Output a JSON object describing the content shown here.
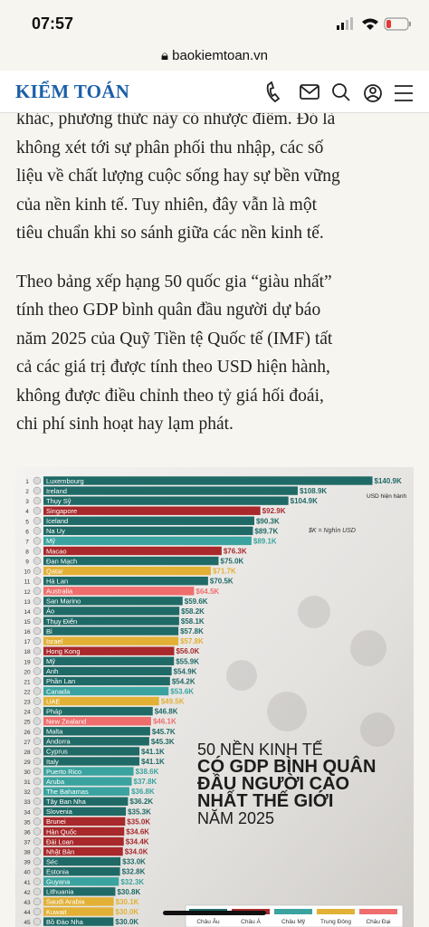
{
  "status": {
    "time": "07:57"
  },
  "browser": {
    "url": "baokiemtoan.vn"
  },
  "header": {
    "logo": "KIỂM TOÁN"
  },
  "article": {
    "paragraphs": [
      [
        "khác, phương thức này có nhược điểm. Đó là",
        "không xét tới sự phân phối thu nhập, các số",
        "liệu về chất lượng cuộc sống hay sự bền vững",
        "của nền kinh tế. Tuy nhiên, đây vẫn là một",
        "tiêu chuẩn khi so sánh giữa các nền kinh tế."
      ],
      [
        "Theo bảng xếp hạng 50 quốc gia “giàu nhất”",
        "tính theo GDP bình quân đầu người dự báo",
        "năm 2025 của Quỹ Tiền tệ Quốc tế (IMF) tất",
        "cả các giá trị được tính theo USD hiện hành,",
        "không được điều chỉnh theo tỷ giá hối đoái,",
        "chi phí sinh hoạt hay lạm phát."
      ]
    ]
  },
  "chart_data": {
    "type": "bar",
    "orientation": "horizontal",
    "title": [
      "50 NỀN KINH TẾ",
      "CÓ GDP BÌNH QUÂN",
      "ĐẦU NGƯỜI CAO",
      "NHẤT THẾ GIỚI",
      "NĂM 2025"
    ],
    "annotations": [
      "USD hiện hành",
      "$K = Nghìn USD"
    ],
    "ranks": [
      1,
      2,
      3,
      4,
      5,
      6,
      7,
      8,
      9,
      10,
      11,
      12,
      13,
      14,
      15,
      16,
      17,
      18,
      19,
      20,
      21,
      22,
      23,
      24,
      25,
      26,
      27,
      28,
      29,
      30,
      31,
      32,
      33,
      34,
      35,
      36,
      37,
      38,
      39,
      40,
      41,
      42,
      43,
      44,
      45
    ],
    "categories": [
      "Luxembourg",
      "Ireland",
      "Thụy Sỹ",
      "Singapore",
      "Iceland",
      "Na Uy",
      "Mỹ",
      "Macao",
      "Đan Mạch",
      "Qatar",
      "Hà Lan",
      "Australia",
      "San Marino",
      "Áo",
      "Thụy Điển",
      "Bỉ",
      "Israel",
      "Hong Kong",
      "Mỹ",
      "Anh",
      "Phần Lan",
      "Canada",
      "UAE",
      "Pháp",
      "New Zealand",
      "Malta",
      "Andorra",
      "Cyprus",
      "Italy",
      "Puerto Rico",
      "Aruba",
      "The Bahamas",
      "Tây Ban Nha",
      "Slovenia",
      "Brunei",
      "Hàn Quốc",
      "Đài Loan",
      "Nhật Bản",
      "Séc",
      "Estonia",
      "Guyana",
      "Lithuania",
      "Saudi Arabia",
      "Kuwait",
      "Bồ Đào Nha"
    ],
    "values": [
      140.9,
      108.9,
      104.9,
      92.9,
      90.3,
      89.7,
      89.1,
      76.3,
      75.0,
      71.7,
      70.5,
      64.5,
      59.6,
      58.2,
      58.1,
      57.8,
      57.8,
      56.0,
      55.9,
      54.9,
      54.2,
      53.6,
      49.5,
      46.8,
      46.1,
      45.7,
      45.3,
      41.1,
      41.1,
      38.6,
      37.8,
      36.8,
      36.2,
      35.3,
      35.0,
      34.6,
      34.4,
      34.0,
      33.0,
      32.8,
      32.3,
      30.8,
      30.1,
      30.0,
      30.0
    ],
    "value_labels": [
      "$140.9K",
      "$108.9K",
      "$104.9K",
      "$92.9K",
      "$90.3K",
      "$89.7K",
      "$89.1K",
      "$76.3K",
      "$75.0K",
      "$71.7K",
      "$70.5K",
      "$64.5K",
      "$59.6K",
      "$58.2K",
      "$58.1K",
      "$57.8K",
      "$57.8K",
      "$56.0K",
      "$55.9K",
      "$54.9K",
      "$54.2K",
      "$53.6K",
      "$49.5K",
      "$46.8K",
      "$46.1K",
      "$45.7K",
      "$45.3K",
      "$41.1K",
      "$41.1K",
      "$38.6K",
      "$37.8K",
      "$36.8K",
      "$36.2K",
      "$35.3K",
      "$35.0K",
      "$34.6K",
      "$34.4K",
      "$34.0K",
      "$33.0K",
      "$32.8K",
      "$32.3K",
      "$30.8K",
      "$30.1K",
      "$30.0K",
      "$30.0K"
    ],
    "colors": [
      "#1f6a66",
      "#1f6a66",
      "#1f6a66",
      "#a8282b",
      "#1f6a66",
      "#1f6a66",
      "#3aa39f",
      "#a8282b",
      "#1f6a66",
      "#e2b035",
      "#1f6a66",
      "#ef6d6d",
      "#1f6a66",
      "#1f6a66",
      "#1f6a66",
      "#1f6a66",
      "#e2b035",
      "#a8282b",
      "#1f6a66",
      "#1f6a66",
      "#1f6a66",
      "#3aa39f",
      "#e2b035",
      "#1f6a66",
      "#ef6d6d",
      "#1f6a66",
      "#1f6a66",
      "#1f6a66",
      "#1f6a66",
      "#3aa39f",
      "#3aa39f",
      "#3aa39f",
      "#1f6a66",
      "#1f6a66",
      "#a8282b",
      "#a8282b",
      "#a8282b",
      "#a8282b",
      "#1f6a66",
      "#1f6a66",
      "#3aa39f",
      "#1f6a66",
      "#e2b035",
      "#e2b035",
      "#1f6a66"
    ],
    "legend": [
      {
        "name": "Châu Âu",
        "color": "#1f6a66"
      },
      {
        "name": "Châu Á",
        "color": "#a8282b"
      },
      {
        "name": "Châu Mỹ",
        "color": "#3aa39f"
      },
      {
        "name": "Trung Đông",
        "color": "#e2b035"
      },
      {
        "name": "Châu Đại",
        "color": "#ef6d6d"
      }
    ]
  }
}
